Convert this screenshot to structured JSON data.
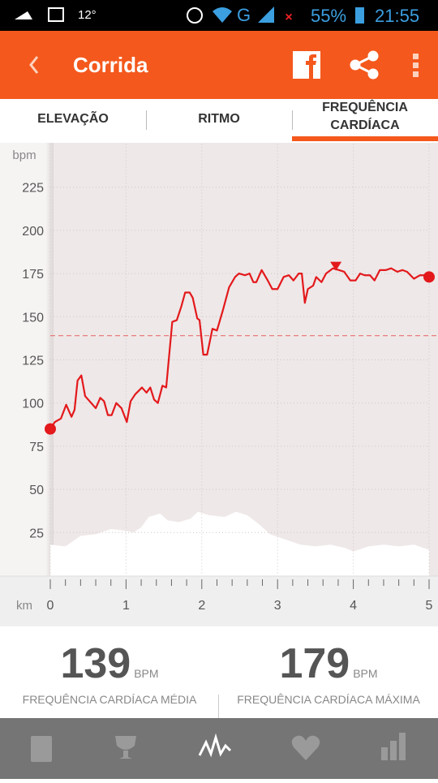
{
  "status_bar": {
    "temperature": "12°",
    "network": "G",
    "battery": "55%",
    "time": "21:55"
  },
  "app_bar": {
    "title": "Corrida"
  },
  "tabs": [
    "ELEVAÇÃO",
    "RITMO",
    "FREQUÊNCIA CARDÍACA"
  ],
  "selected_tab": 2,
  "chart_data": {
    "type": "line",
    "y_label": "bpm",
    "x_label": "km",
    "x": [
      0,
      0.06,
      0.14,
      0.21,
      0.28,
      0.32,
      0.36,
      0.41,
      0.46,
      0.54,
      0.6,
      0.66,
      0.71,
      0.76,
      0.81,
      0.87,
      0.94,
      1.01,
      1.06,
      1.12,
      1.21,
      1.27,
      1.32,
      1.37,
      1.42,
      1.48,
      1.53,
      1.61,
      1.67,
      1.73,
      1.78,
      1.84,
      1.88,
      1.94,
      1.97,
      2.02,
      2.07,
      2.14,
      2.2,
      2.28,
      2.36,
      2.44,
      2.49,
      2.57,
      2.63,
      2.68,
      2.72,
      2.79,
      2.87,
      2.93,
      3.0,
      3.08,
      3.15,
      3.21,
      3.28,
      3.32,
      3.36,
      3.4,
      3.47,
      3.51,
      3.58,
      3.64,
      3.73,
      3.81,
      3.88,
      3.96,
      4.03,
      4.09,
      4.15,
      4.22,
      4.28,
      4.35,
      4.43,
      4.5,
      4.58,
      4.65,
      4.71,
      4.8,
      4.88,
      4.95,
      5.0
    ],
    "series": [
      {
        "color": "#e3191c",
        "values": [
          85,
          89,
          91,
          99,
          92,
          96,
          113,
          116,
          104,
          100,
          97,
          103,
          101,
          93,
          93,
          100,
          97,
          89,
          101,
          105,
          109,
          106,
          109,
          102,
          100,
          110,
          109,
          147,
          148,
          156,
          164,
          164,
          161,
          149,
          148,
          128,
          128,
          143,
          142,
          154,
          167,
          173,
          175,
          174,
          175,
          170,
          170,
          177,
          171,
          166,
          166,
          173,
          174,
          171,
          175,
          175,
          158,
          166,
          168,
          173,
          170,
          175,
          178,
          177,
          176,
          171,
          171,
          175,
          174,
          174,
          171,
          177,
          177,
          178,
          176,
          177,
          176,
          172,
          174,
          174,
          173
        ]
      }
    ],
    "average": 139,
    "max": {
      "x": 3.77,
      "value": 179
    },
    "elevation": {
      "color": "#ffffff",
      "x": [
        0,
        0.2,
        0.3,
        0.4,
        0.6,
        0.8,
        1.0,
        1.1,
        1.2,
        1.3,
        1.45,
        1.55,
        1.7,
        1.85,
        1.95,
        2.1,
        2.3,
        2.45,
        2.6,
        2.75,
        2.9,
        3.1,
        3.3,
        3.5,
        3.7,
        3.9,
        4.0,
        4.2,
        4.4,
        4.6,
        4.8,
        5.0
      ],
      "values": [
        18,
        17,
        20,
        23,
        24,
        27,
        26,
        25,
        28,
        34,
        36,
        32,
        31,
        33,
        37,
        35,
        34,
        37,
        35,
        30,
        24,
        21,
        18,
        17,
        18,
        16,
        14,
        17,
        18,
        17,
        18,
        15
      ]
    },
    "xlim": [
      0,
      5
    ],
    "ylim": [
      0,
      250
    ],
    "xticks": [
      0,
      1,
      2,
      3,
      4,
      5
    ],
    "yticks": [
      25,
      50,
      75,
      100,
      125,
      150,
      175,
      200,
      225
    ],
    "minor_ticks_per_major": 5,
    "grid": true
  },
  "summary": [
    {
      "unit": "BPM",
      "label": "FREQUÊNCIA CARDÍACA MÉDIA"
    },
    {
      "unit": "BPM",
      "label": "FREQUÊNCIA CARDÍACA MÁXIMA"
    }
  ]
}
